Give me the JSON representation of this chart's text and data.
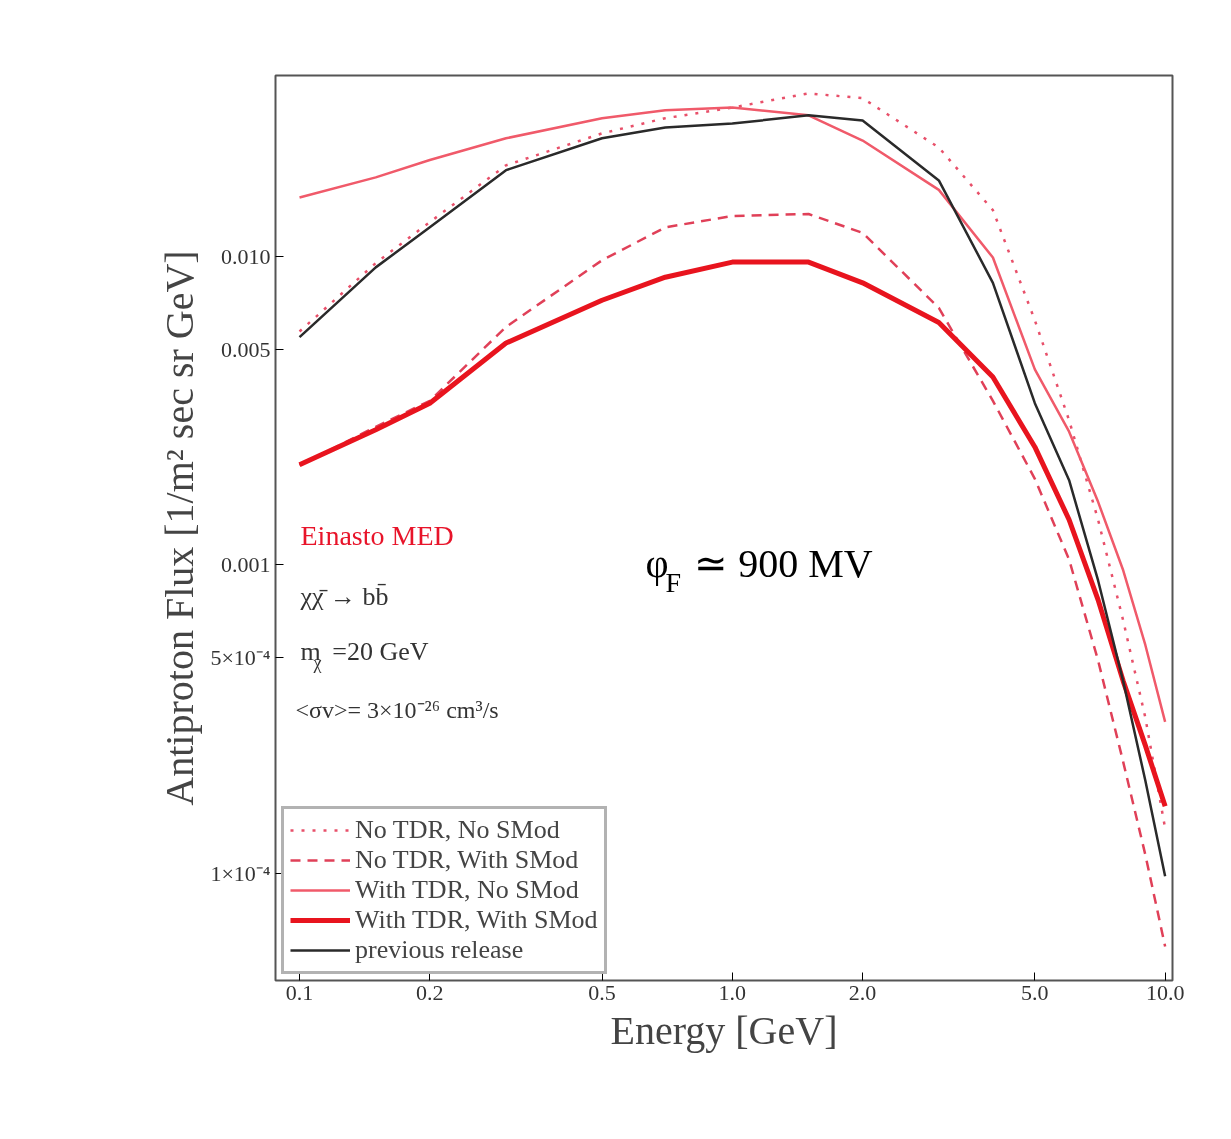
{
  "chart_data": {
    "type": "line",
    "xlabel": "Energy [GeV]",
    "ylabel": "Antiproton Flux [1/m² sec sr GeV]",
    "log": "xy",
    "xlim": [
      0.088,
      10.4
    ],
    "ylim": [
      4.5e-05,
      0.0385
    ],
    "xticks": [
      {
        "value": 0.1,
        "label": "0.1"
      },
      {
        "value": 0.2,
        "label": "0.2"
      },
      {
        "value": 0.5,
        "label": "0.5"
      },
      {
        "value": 1,
        "label": "1.0"
      },
      {
        "value": 2,
        "label": "2.0"
      },
      {
        "value": 5,
        "label": "5.0"
      },
      {
        "value": 10,
        "label": "10.0"
      }
    ],
    "yticks": [
      {
        "value": 0.0001,
        "label": "1×10⁻⁴"
      },
      {
        "value": 0.0005,
        "label": "5×10⁻⁴"
      },
      {
        "value": 0.001,
        "label": "0.001"
      },
      {
        "value": 0.005,
        "label": "0.005"
      },
      {
        "value": 0.01,
        "label": "0.010"
      }
    ],
    "grid": false,
    "legend": "bottom left",
    "x": [
      0.1,
      0.15,
      0.2,
      0.3,
      0.5,
      0.7,
      1.0,
      1.5,
      2.0,
      3.0,
      4.0,
      5.0,
      6.0,
      7.0,
      8.0,
      9.0,
      10.0
    ],
    "series": [
      {
        "name": "No TDR, No SMod",
        "color": "#e8506a",
        "line_style": "dotted",
        "values": [
          0.0057,
          0.0095,
          0.0129,
          0.0197,
          0.025,
          0.028,
          0.0303,
          0.0337,
          0.0325,
          0.0225,
          0.0141,
          0.0062,
          0.00294,
          0.0014,
          0.00066,
          0.00032,
          0.00014
        ]
      },
      {
        "name": "No TDR, With SMod",
        "color": "#e04058",
        "line_style": "dashed",
        "values": [
          0.0021,
          0.0028,
          0.0034,
          0.0059,
          0.0097,
          0.0124,
          0.0135,
          0.0137,
          0.0119,
          0.0068,
          0.0034,
          0.0019,
          0.00104,
          0.00049,
          0.00023,
          0.000115,
          5.8e-05
        ]
      },
      {
        "name": "With TDR, No SMod",
        "color": "#f05a6a",
        "line_style": "solid",
        "values": [
          0.0155,
          0.018,
          0.0205,
          0.0241,
          0.028,
          0.0297,
          0.0303,
          0.0286,
          0.0237,
          0.0164,
          0.0099,
          0.0043,
          0.0027,
          0.0016,
          0.00096,
          0.00055,
          0.00031
        ]
      },
      {
        "name": "With TDR, With SMod",
        "color": "#e8141e",
        "line_style": "solid",
        "values": [
          0.00211,
          0.00274,
          0.00334,
          0.00523,
          0.0072,
          0.00855,
          0.00957,
          0.00957,
          0.0082,
          0.0061,
          0.00406,
          0.00241,
          0.0014,
          0.00077,
          0.00042,
          0.00026,
          0.000165
        ]
      },
      {
        "name": "previous release",
        "color": "#2a2a2a",
        "line_style": "solid",
        "values": [
          0.00547,
          0.0092,
          0.0124,
          0.019,
          0.0241,
          0.0261,
          0.0269,
          0.0286,
          0.0275,
          0.0176,
          0.0082,
          0.00334,
          0.00188,
          0.00089,
          0.00042,
          0.0002,
          9.8e-05
        ]
      }
    ],
    "annotations": [
      "Einasto MED",
      "χχ̄ → bb̄",
      "m$_{χ}$=20 GeV",
      "<σv>= 3×10⁻²⁶ cm³/s",
      "φ$_{F}$ ≃ 900 MV"
    ]
  }
}
